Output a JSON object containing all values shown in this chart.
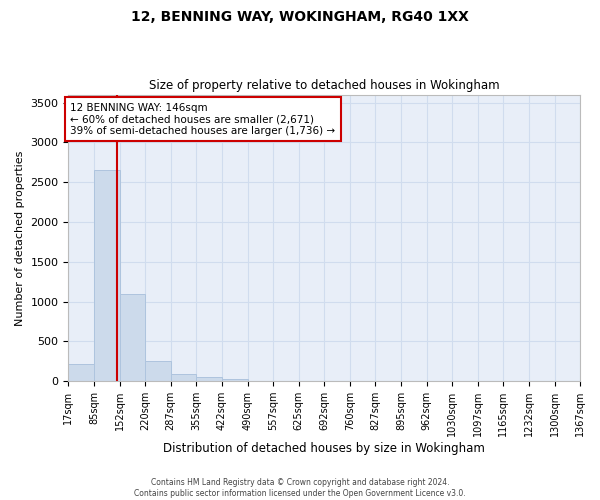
{
  "title": "12, BENNING WAY, WOKINGHAM, RG40 1XX",
  "subtitle": "Size of property relative to detached houses in Wokingham",
  "xlabel": "Distribution of detached houses by size in Wokingham",
  "ylabel": "Number of detached properties",
  "bar_color": "#ccdaeb",
  "bar_edge_color": "#aec4de",
  "grid_color": "#d0dcee",
  "background_color": "#e8eef8",
  "property_line_color": "#cc0000",
  "property_value": 146,
  "annotation_text": "12 BENNING WAY: 146sqm\n← 60% of detached houses are smaller (2,671)\n39% of semi-detached houses are larger (1,736) →",
  "annotation_box_color": "#ffffff",
  "annotation_box_edge": "#cc0000",
  "footnote": "Contains HM Land Registry data © Crown copyright and database right 2024.\nContains public sector information licensed under the Open Government Licence v3.0.",
  "bin_edges": [
    17,
    85,
    152,
    220,
    287,
    355,
    422,
    490,
    557,
    625,
    692,
    760,
    827,
    895,
    962,
    1030,
    1097,
    1165,
    1232,
    1300,
    1367
  ],
  "bin_labels": [
    "17sqm",
    "85sqm",
    "152sqm",
    "220sqm",
    "287sqm",
    "355sqm",
    "422sqm",
    "490sqm",
    "557sqm",
    "625sqm",
    "692sqm",
    "760sqm",
    "827sqm",
    "895sqm",
    "962sqm",
    "1030sqm",
    "1097sqm",
    "1165sqm",
    "1232sqm",
    "1300sqm",
    "1367sqm"
  ],
  "bar_heights": [
    220,
    2650,
    1100,
    255,
    90,
    50,
    28,
    0,
    0,
    0,
    0,
    0,
    0,
    0,
    0,
    0,
    0,
    0,
    0,
    0
  ],
  "ylim": [
    0,
    3600
  ],
  "yticks": [
    0,
    500,
    1000,
    1500,
    2000,
    2500,
    3000,
    3500
  ]
}
